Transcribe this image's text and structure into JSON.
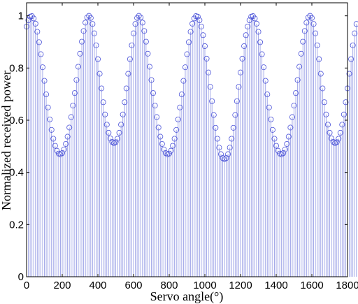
{
  "chart_data": {
    "type": "stem",
    "xlabel": "Servo angle(°)",
    "ylabel": "Normalized received power",
    "xlim": [
      0,
      1800
    ],
    "ylim": [
      0,
      1.05
    ],
    "xticks": [
      0,
      200,
      400,
      600,
      800,
      1000,
      1200,
      1400,
      1600,
      1800
    ],
    "yticks": [
      0,
      0.2,
      0.4,
      0.6,
      0.8,
      1
    ],
    "tick_labels_x": [
      "0",
      "200",
      "400",
      "600",
      "800",
      "1000",
      "1200",
      "1400",
      "1600",
      "1800"
    ],
    "tick_labels_y": [
      "0",
      "0.2",
      "0.4",
      "0.6",
      "0.8",
      "1"
    ],
    "grid": false,
    "x_step": 10,
    "y": [
      0.959,
      0.983,
      0.997,
      0.999,
      0.99,
      0.97,
      0.939,
      0.899,
      0.853,
      0.803,
      0.751,
      0.699,
      0.649,
      0.603,
      0.563,
      0.529,
      0.502,
      0.483,
      0.472,
      0.469,
      0.474,
      0.488,
      0.509,
      0.537,
      0.572,
      0.612,
      0.656,
      0.704,
      0.754,
      0.805,
      0.855,
      0.901,
      0.942,
      0.974,
      0.994,
      1.0,
      0.992,
      0.969,
      0.933,
      0.887,
      0.834,
      0.778,
      0.722,
      0.669,
      0.622,
      0.583,
      0.552,
      0.53,
      0.517,
      0.512,
      0.516,
      0.529,
      0.552,
      0.583,
      0.622,
      0.669,
      0.722,
      0.778,
      0.834,
      0.887,
      0.933,
      0.969,
      0.992,
      1.0,
      0.994,
      0.974,
      0.942,
      0.901,
      0.855,
      0.805,
      0.754,
      0.704,
      0.656,
      0.612,
      0.572,
      0.537,
      0.509,
      0.488,
      0.474,
      0.469,
      0.472,
      0.483,
      0.502,
      0.529,
      0.563,
      0.603,
      0.649,
      0.699,
      0.751,
      0.803,
      0.853,
      0.899,
      0.939,
      0.97,
      0.99,
      0.999,
      0.997,
      0.983,
      0.959,
      0.926,
      0.884,
      0.836,
      0.783,
      0.728,
      0.673,
      0.62,
      0.571,
      0.529,
      0.495,
      0.47,
      0.455,
      0.45,
      0.455,
      0.47,
      0.495,
      0.529,
      0.571,
      0.62,
      0.673,
      0.728,
      0.783,
      0.836,
      0.884,
      0.926,
      0.959,
      0.983,
      0.997,
      0.999,
      0.99,
      0.97,
      0.939,
      0.899,
      0.853,
      0.803,
      0.751,
      0.699,
      0.649,
      0.603,
      0.563,
      0.529,
      0.502,
      0.483,
      0.472,
      0.469,
      0.474,
      0.488,
      0.509,
      0.537,
      0.572,
      0.612,
      0.656,
      0.704,
      0.754,
      0.805,
      0.855,
      0.901,
      0.942,
      0.974,
      0.994,
      1.0,
      0.992,
      0.969,
      0.933,
      0.887,
      0.834,
      0.778,
      0.722,
      0.669,
      0.622,
      0.583,
      0.552,
      0.53,
      0.517,
      0.512,
      0.516,
      0.529,
      0.552,
      0.583,
      0.622,
      0.669,
      0.722,
      0.778,
      0.834,
      0.887,
      0.933,
      0.969
    ]
  }
}
